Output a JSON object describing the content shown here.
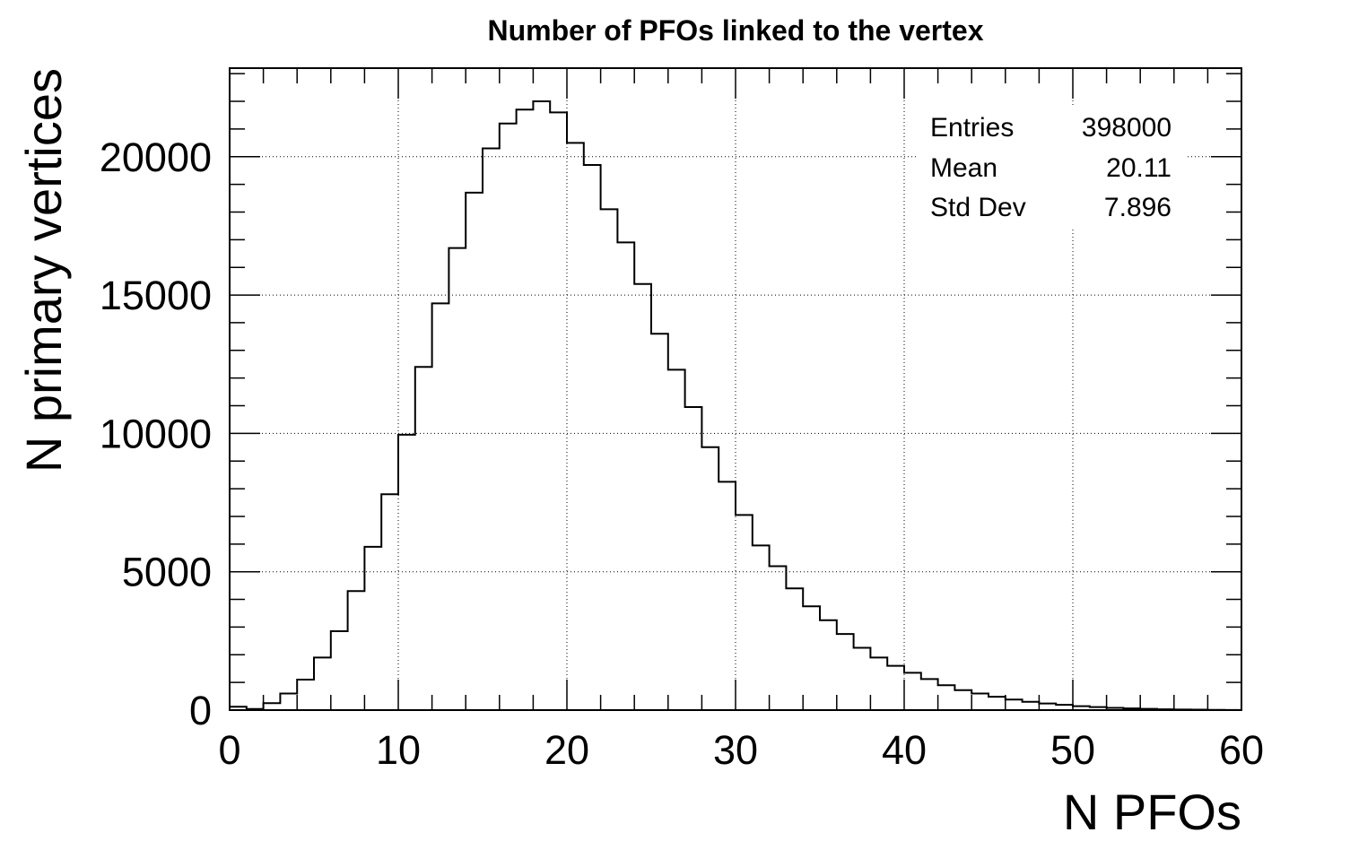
{
  "chart_data": {
    "type": "bar",
    "style": "step-histogram",
    "title": "Number of PFOs linked to the vertex",
    "xlabel": "N PFOs",
    "ylabel": "N primary vertices",
    "xlim": [
      0,
      60
    ],
    "ylim": [
      0,
      23200
    ],
    "xticks": [
      0,
      10,
      20,
      30,
      40,
      50,
      60
    ],
    "yticks": [
      0,
      5000,
      10000,
      15000,
      20000
    ],
    "grid": true,
    "bin_width": 1,
    "bin_edges_start": 0,
    "values": [
      120,
      40,
      250,
      600,
      1100,
      1900,
      2850,
      4300,
      5900,
      7800,
      9950,
      12400,
      14700,
      16700,
      18700,
      20300,
      21200,
      21700,
      22000,
      21600,
      20500,
      19700,
      18100,
      16900,
      15400,
      13600,
      12300,
      10950,
      9500,
      8250,
      7050,
      5950,
      5200,
      4400,
      3750,
      3250,
      2750,
      2250,
      1900,
      1600,
      1350,
      1120,
      900,
      720,
      600,
      480,
      380,
      300,
      240,
      190,
      140,
      110,
      80,
      60,
      45,
      30,
      20,
      15,
      10,
      5
    ],
    "stats_box": {
      "rows": [
        {
          "label": "Entries",
          "value": "398000"
        },
        {
          "label": "Mean",
          "value": "20.11"
        },
        {
          "label": "Std Dev",
          "value": "7.896"
        }
      ]
    },
    "line_color": "#000000"
  }
}
